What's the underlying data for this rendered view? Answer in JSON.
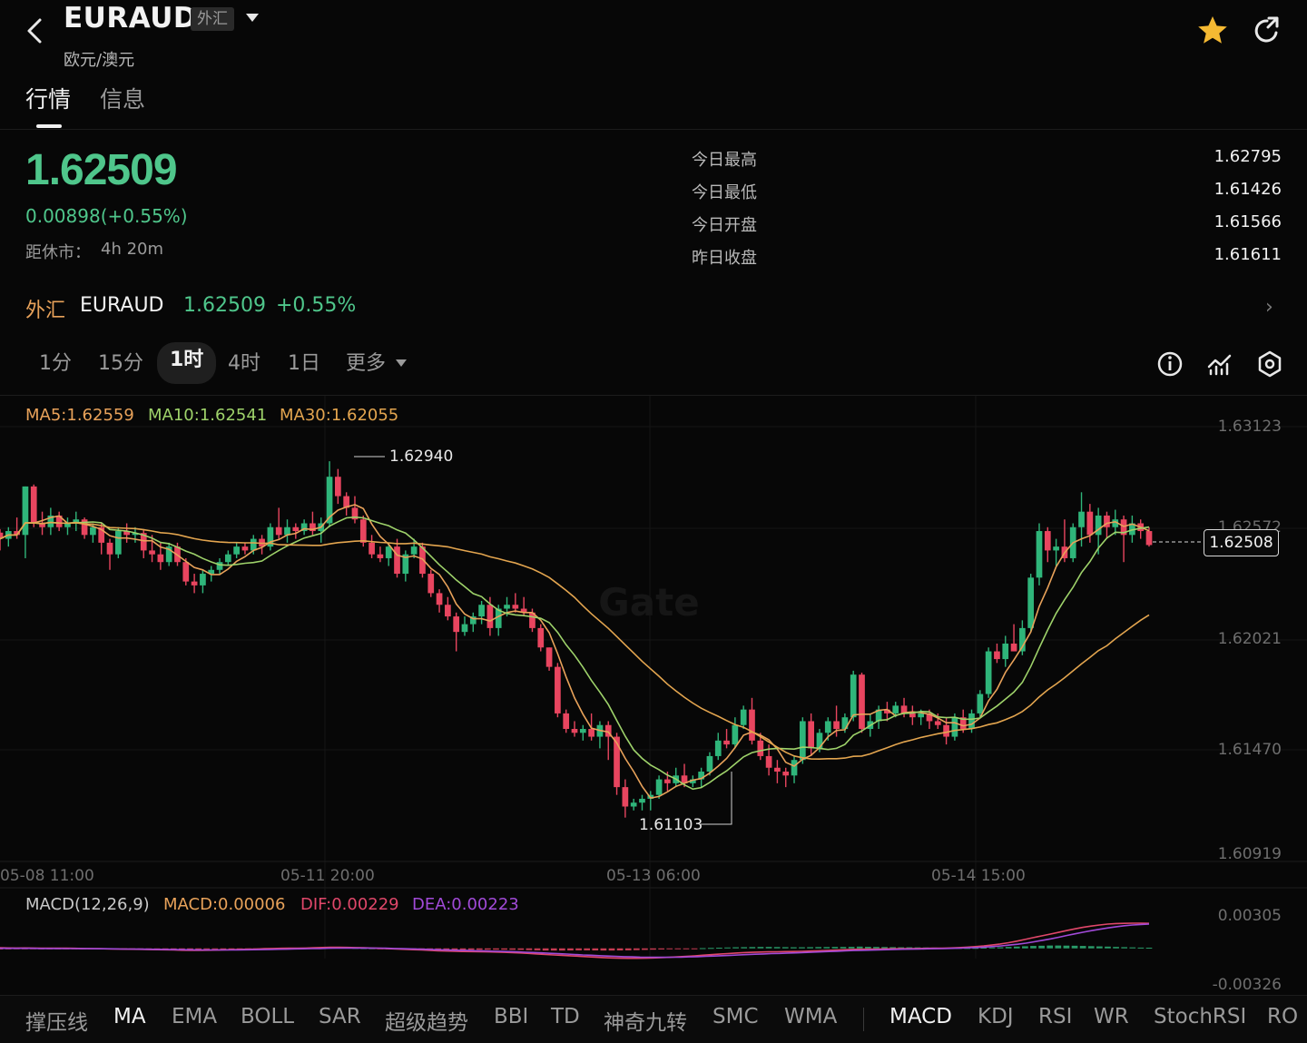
{
  "header": {
    "symbol": "EURAUD",
    "badge": "外汇",
    "subtitle": "欧元/澳元",
    "icons": [
      "back-arrow-icon",
      "star-icon",
      "share-icon"
    ],
    "favorite_color": "#f5b932"
  },
  "tabs": [
    "行情",
    "信息"
  ],
  "quote": {
    "price": "1.62509",
    "change": "0.00898(+0.55%)",
    "close_label": "距休市：",
    "close_value": "4h 20m",
    "stats": [
      {
        "label": "今日最高",
        "value": "1.62795"
      },
      {
        "label": "今日最低",
        "value": "1.61426"
      },
      {
        "label": "今日开盘",
        "value": "1.61566"
      },
      {
        "label": "昨日收盘",
        "value": "1.61611"
      }
    ]
  },
  "ticker": {
    "category": "外汇",
    "symbol": "EURAUD",
    "price": "1.62509",
    "pct": "+0.55%",
    "arrow": "›"
  },
  "intervals": [
    "1分",
    "15分",
    "1时",
    "4时",
    "1日",
    "更多"
  ],
  "selected_interval": "1时",
  "tools": [
    "info-icon",
    "indicator-icon",
    "settings-icon"
  ],
  "legend": {
    "ma5": "MA5:1.62559",
    "ma10": "MA10:1.62541",
    "ma30": "MA30:1.62055",
    "macd_title": "MACD(12,26,9)",
    "macd": "MACD:0.00006",
    "dif": "DIF:0.00229",
    "dea": "DEA:0.00223"
  },
  "colors": {
    "up": "#2fb57a",
    "down": "#e8455f",
    "ma5": "#e8a25a",
    "ma10": "#9ed26a",
    "ma30": "#e3a54f",
    "dif": "#e0476a",
    "dea": "#a14ad8"
  },
  "chart_data": {
    "type": "candlestick",
    "y_ticks": [
      "1.63123",
      "1.62572",
      "1.62021",
      "1.61470",
      "1.60919"
    ],
    "x_ticks": [
      "05-08 11:00",
      "05-11 20:00",
      "05-13 06:00",
      "05-14 15:00"
    ],
    "annotations": {
      "high": "1.62940",
      "low": "1.61103",
      "last_price": "1.62508"
    },
    "ylim": [
      1.60919,
      1.63123
    ],
    "macd_ticks": [
      "0.00305",
      "-0.00326"
    ],
    "watermark": "Gate",
    "candles": [
      [
        1.62572,
        1.6259,
        1.6248,
        1.6254
      ],
      [
        1.6254,
        1.626,
        1.625,
        1.6258
      ],
      [
        1.6258,
        1.6265,
        1.6254,
        1.6256
      ],
      [
        1.6256,
        1.6281,
        1.6244,
        1.6281
      ],
      [
        1.6281,
        1.6282,
        1.626,
        1.6262
      ],
      [
        1.6262,
        1.6268,
        1.6256,
        1.626
      ],
      [
        1.626,
        1.627,
        1.6256,
        1.6266
      ],
      [
        1.6266,
        1.6268,
        1.6258,
        1.626
      ],
      [
        1.626,
        1.6265,
        1.6256,
        1.6262
      ],
      [
        1.6262,
        1.6268,
        1.6258,
        1.6264
      ],
      [
        1.6264,
        1.6265,
        1.6254,
        1.6256
      ],
      [
        1.6256,
        1.6262,
        1.6252,
        1.626
      ],
      [
        1.626,
        1.6262,
        1.6246,
        1.6252
      ],
      [
        1.6252,
        1.6254,
        1.6238,
        1.6246
      ],
      [
        1.6246,
        1.626,
        1.6244,
        1.6258
      ],
      [
        1.6258,
        1.6262,
        1.6252,
        1.6256
      ],
      [
        1.6256,
        1.626,
        1.6252,
        1.6257
      ],
      [
        1.6257,
        1.6259,
        1.6244,
        1.6248
      ],
      [
        1.6248,
        1.6256,
        1.6242,
        1.6246
      ],
      [
        1.6246,
        1.6252,
        1.6238,
        1.6242
      ],
      [
        1.6242,
        1.6252,
        1.624,
        1.625
      ],
      [
        1.625,
        1.6252,
        1.624,
        1.6242
      ],
      [
        1.6242,
        1.6244,
        1.623,
        1.6232
      ],
      [
        1.6232,
        1.6236,
        1.6226,
        1.623
      ],
      [
        1.623,
        1.6238,
        1.6226,
        1.6236
      ],
      [
        1.6236,
        1.624,
        1.6232,
        1.6238
      ],
      [
        1.6238,
        1.6244,
        1.6236,
        1.6242
      ],
      [
        1.6242,
        1.6248,
        1.624,
        1.6246
      ],
      [
        1.6246,
        1.6252,
        1.6244,
        1.625
      ],
      [
        1.625,
        1.6252,
        1.6246,
        1.6248
      ],
      [
        1.6248,
        1.6256,
        1.6246,
        1.6254
      ],
      [
        1.6254,
        1.6256,
        1.6246,
        1.625
      ],
      [
        1.625,
        1.6262,
        1.6248,
        1.626
      ],
      [
        1.626,
        1.627,
        1.6254,
        1.6256
      ],
      [
        1.6256,
        1.6264,
        1.6252,
        1.626
      ],
      [
        1.626,
        1.6262,
        1.6254,
        1.6258
      ],
      [
        1.6258,
        1.6264,
        1.6256,
        1.6262
      ],
      [
        1.6262,
        1.6268,
        1.6256,
        1.6258
      ],
      [
        1.6258,
        1.6265,
        1.6252,
        1.6262
      ],
      [
        1.6262,
        1.6294,
        1.626,
        1.6286
      ],
      [
        1.6286,
        1.629,
        1.6272,
        1.6276
      ],
      [
        1.6276,
        1.6278,
        1.6266,
        1.627
      ],
      [
        1.627,
        1.6276,
        1.6262,
        1.6264
      ],
      [
        1.6264,
        1.6266,
        1.625,
        1.6252
      ],
      [
        1.6252,
        1.6256,
        1.6244,
        1.6246
      ],
      [
        1.6246,
        1.625,
        1.6242,
        1.6244
      ],
      [
        1.6244,
        1.6252,
        1.624,
        1.625
      ],
      [
        1.625,
        1.6254,
        1.6234,
        1.6236
      ],
      [
        1.6236,
        1.6248,
        1.6232,
        1.6246
      ],
      [
        1.6246,
        1.6254,
        1.6244,
        1.625
      ],
      [
        1.625,
        1.6252,
        1.6234,
        1.6236
      ],
      [
        1.6236,
        1.6238,
        1.6224,
        1.6226
      ],
      [
        1.6226,
        1.6228,
        1.6216,
        1.622
      ],
      [
        1.622,
        1.6224,
        1.6212,
        1.6214
      ],
      [
        1.6214,
        1.6216,
        1.6196,
        1.6206
      ],
      [
        1.6206,
        1.6214,
        1.6204,
        1.621
      ],
      [
        1.621,
        1.6216,
        1.6206,
        1.6214
      ],
      [
        1.6214,
        1.6222,
        1.621,
        1.622
      ],
      [
        1.622,
        1.6224,
        1.6204,
        1.6208
      ],
      [
        1.6208,
        1.622,
        1.6204,
        1.6218
      ],
      [
        1.6218,
        1.6224,
        1.6214,
        1.622
      ],
      [
        1.622,
        1.6226,
        1.6216,
        1.6218
      ],
      [
        1.6218,
        1.6224,
        1.6214,
        1.6216
      ],
      [
        1.6216,
        1.6218,
        1.6206,
        1.6208
      ],
      [
        1.6208,
        1.621,
        1.6196,
        1.6198
      ],
      [
        1.6198,
        1.6198,
        1.6186,
        1.6188
      ],
      [
        1.6188,
        1.619,
        1.6162,
        1.6164
      ],
      [
        1.6164,
        1.6166,
        1.6154,
        1.6156
      ],
      [
        1.6156,
        1.616,
        1.6152,
        1.6154
      ],
      [
        1.6154,
        1.6158,
        1.615,
        1.6156
      ],
      [
        1.6156,
        1.6164,
        1.615,
        1.6152
      ],
      [
        1.6152,
        1.616,
        1.6146,
        1.6158
      ],
      [
        1.6158,
        1.616,
        1.614,
        1.6152
      ],
      [
        1.6152,
        1.6154,
        1.6122,
        1.6126
      ],
      [
        1.6126,
        1.613,
        1.61103,
        1.6116
      ],
      [
        1.6116,
        1.612,
        1.6114,
        1.6118
      ],
      [
        1.6118,
        1.6122,
        1.6114,
        1.612
      ],
      [
        1.612,
        1.6124,
        1.6114,
        1.6122
      ],
      [
        1.6122,
        1.6132,
        1.612,
        1.613
      ],
      [
        1.613,
        1.6134,
        1.6124,
        1.6128
      ],
      [
        1.6128,
        1.6136,
        1.6126,
        1.6132
      ],
      [
        1.6132,
        1.6138,
        1.6126,
        1.6128
      ],
      [
        1.6128,
        1.6132,
        1.6126,
        1.613
      ],
      [
        1.613,
        1.6136,
        1.6126,
        1.6134
      ],
      [
        1.6134,
        1.6144,
        1.6132,
        1.6142
      ],
      [
        1.6142,
        1.6154,
        1.614,
        1.615
      ],
      [
        1.615,
        1.6156,
        1.6146,
        1.6148
      ],
      [
        1.6148,
        1.6162,
        1.6146,
        1.6158
      ],
      [
        1.6158,
        1.6168,
        1.6156,
        1.6166
      ],
      [
        1.6166,
        1.6172,
        1.6148,
        1.615
      ],
      [
        1.615,
        1.6154,
        1.614,
        1.6142
      ],
      [
        1.6142,
        1.6148,
        1.6132,
        1.6136
      ],
      [
        1.6136,
        1.614,
        1.6128,
        1.6134
      ],
      [
        1.6134,
        1.6136,
        1.6126,
        1.6132
      ],
      [
        1.6132,
        1.6142,
        1.6128,
        1.614
      ],
      [
        1.614,
        1.6162,
        1.6138,
        1.616
      ],
      [
        1.616,
        1.6164,
        1.6142,
        1.6146
      ],
      [
        1.6146,
        1.6156,
        1.6144,
        1.6154
      ],
      [
        1.6154,
        1.6162,
        1.615,
        1.616
      ],
      [
        1.616,
        1.6168,
        1.6152,
        1.6156
      ],
      [
        1.6156,
        1.6164,
        1.6154,
        1.6162
      ],
      [
        1.6162,
        1.6186,
        1.616,
        1.6184
      ],
      [
        1.6184,
        1.6185,
        1.6154,
        1.6156
      ],
      [
        1.6156,
        1.6164,
        1.6152,
        1.616
      ],
      [
        1.616,
        1.6168,
        1.6156,
        1.6166
      ],
      [
        1.6166,
        1.617,
        1.616,
        1.6164
      ],
      [
        1.6164,
        1.617,
        1.6162,
        1.6168
      ],
      [
        1.6168,
        1.6172,
        1.6162,
        1.6164
      ],
      [
        1.6164,
        1.6168,
        1.6158,
        1.6162
      ],
      [
        1.6162,
        1.6166,
        1.6158,
        1.6164
      ],
      [
        1.6164,
        1.6166,
        1.6156,
        1.616
      ],
      [
        1.616,
        1.6164,
        1.6156,
        1.6158
      ],
      [
        1.6158,
        1.6162,
        1.6148,
        1.6152
      ],
      [
        1.6152,
        1.6164,
        1.615,
        1.6162
      ],
      [
        1.6162,
        1.6166,
        1.6154,
        1.6156
      ],
      [
        1.6156,
        1.6166,
        1.6154,
        1.6164
      ],
      [
        1.6164,
        1.6176,
        1.6162,
        1.6174
      ],
      [
        1.6174,
        1.6198,
        1.6172,
        1.6196
      ],
      [
        1.6196,
        1.62,
        1.619,
        1.6192
      ],
      [
        1.6192,
        1.6204,
        1.6188,
        1.62
      ],
      [
        1.62,
        1.621,
        1.6196,
        1.6196
      ],
      [
        1.6196,
        1.6212,
        1.6194,
        1.6208
      ],
      [
        1.6208,
        1.6236,
        1.6206,
        1.6234
      ],
      [
        1.6234,
        1.6262,
        1.623,
        1.6258
      ],
      [
        1.6258,
        1.626,
        1.6242,
        1.6248
      ],
      [
        1.6248,
        1.6254,
        1.624,
        1.625
      ],
      [
        1.625,
        1.6264,
        1.6242,
        1.6244
      ],
      [
        1.6244,
        1.6262,
        1.6242,
        1.626
      ],
      [
        1.626,
        1.6278,
        1.625,
        1.6268
      ],
      [
        1.6268,
        1.6272,
        1.6252,
        1.6256
      ],
      [
        1.6256,
        1.627,
        1.6246,
        1.6266
      ],
      [
        1.6266,
        1.6268,
        1.6254,
        1.626
      ],
      [
        1.626,
        1.6269,
        1.6256,
        1.6264
      ],
      [
        1.6264,
        1.6266,
        1.6242,
        1.6256
      ],
      [
        1.6256,
        1.6266,
        1.6252,
        1.6262
      ],
      [
        1.6262,
        1.6264,
        1.6254,
        1.6258
      ],
      [
        1.6258,
        1.626,
        1.625,
        1.62508
      ]
    ],
    "macd_hist": [
      -0.0001,
      -9e-05,
      -8e-05,
      -6e-05,
      -6e-05,
      -5e-05,
      -4e-05,
      -4e-05,
      -3e-05,
      -3e-05,
      -4e-05,
      -4e-05,
      -5e-05,
      -6e-05,
      -6e-05,
      -7e-05,
      -7e-05,
      -8e-05,
      -8e-05,
      -9e-05,
      -9e-05,
      -0.0001,
      -0.00011,
      -0.00011,
      -0.0001,
      -9e-05,
      -8e-05,
      -6e-05,
      -5e-05,
      -4e-05,
      -3e-05,
      -2e-05,
      1e-05,
      2e-05,
      3e-05,
      3e-05,
      4e-05,
      5e-05,
      6e-05,
      8e-05,
      9e-05,
      8e-05,
      6e-05,
      4e-05,
      2e-05,
      1e-05,
      -1e-05,
      -3e-05,
      -5e-05,
      -6e-05,
      -8e-05,
      -0.0001,
      -0.00012,
      -0.00013,
      -0.00014,
      -0.00014,
      -0.00014,
      -0.00013,
      -0.00013,
      -0.00012,
      -0.00012,
      -0.00012,
      -0.00013,
      -0.00014,
      -0.00016,
      -0.00018,
      -0.0002,
      -0.0002,
      -0.0002,
      -0.00019,
      -0.00018,
      -0.00018,
      -0.00019,
      -0.0002,
      -0.0002,
      -0.00019,
      -0.00018,
      -0.00016,
      -0.00014,
      -0.00012,
      -0.0001,
      -8e-05,
      -6e-05,
      -4e-05,
      -2e-05,
      2e-05,
      4e-05,
      6e-05,
      8e-05,
      0.0001,
      0.00011,
      0.00012,
      0.00013,
      0.00013,
      0.00012,
      0.00011,
      0.0001,
      0.0001,
      0.00011,
      0.00012,
      0.00012,
      0.00013,
      0.00013,
      0.00014,
      0.00016,
      0.00014,
      0.00013,
      0.00012,
      0.00011,
      0.0001,
      0.0001,
      9e-05,
      8e-05,
      7e-05,
      6e-05,
      5e-05,
      4e-05,
      3e-05,
      4e-05,
      6e-05,
      8e-05,
      0.0001,
      0.00013,
      0.00016,
      0.00019,
      0.00022,
      0.00024,
      0.00026,
      0.00026,
      0.00025,
      0.00024,
      0.00022,
      0.0002,
      0.00018,
      0.00016,
      0.00013,
      0.00011,
      9e-05,
      7e-05,
      6e-05
    ],
    "dif": [
      5e-05,
      4e-05,
      3e-05,
      4e-05,
      3e-05,
      2e-05,
      2e-05,
      1e-05,
      1e-05,
      0.0,
      -1e-05,
      -2e-05,
      -3e-05,
      -5e-05,
      -6e-05,
      -7e-05,
      -8e-05,
      -9e-05,
      -0.00011,
      -0.00012,
      -0.00013,
      -0.00015,
      -0.00017,
      -0.00018,
      -0.00018,
      -0.00017,
      -0.00016,
      -0.00014,
      -0.00012,
      -0.0001,
      -8e-05,
      -6e-05,
      -3e-05,
      -1e-05,
      0.0,
      1e-05,
      2e-05,
      3e-05,
      5e-05,
      8e-05,
      0.0001,
      0.0001,
      9e-05,
      7e-05,
      5e-05,
      3e-05,
      0.0,
      -3e-05,
      -6e-05,
      -9e-05,
      -0.00012,
      -0.00015,
      -0.00019,
      -0.00022,
      -0.00025,
      -0.00027,
      -0.00029,
      -0.0003,
      -0.00031,
      -0.00032,
      -0.00034,
      -0.00036,
      -0.00039,
      -0.00042,
      -0.00046,
      -0.00051,
      -0.00056,
      -0.0006,
      -0.00064,
      -0.00068,
      -0.00072,
      -0.00076,
      -0.0008,
      -0.00084,
      -0.00088,
      -0.0009,
      -0.00091,
      -0.00091,
      -0.0009,
      -0.00088,
      -0.00085,
      -0.00082,
      -0.00078,
      -0.00074,
      -0.00069,
      -0.00063,
      -0.00058,
      -0.00053,
      -0.00048,
      -0.00043,
      -0.00039,
      -0.00036,
      -0.00034,
      -0.00032,
      -0.00031,
      -0.0003,
      -0.00029,
      -0.00027,
      -0.00025,
      -0.00022,
      -0.00019,
      -0.00016,
      -0.00013,
      -0.0001,
      -8e-05,
      -7e-05,
      -6e-05,
      -5e-05,
      -4e-05,
      -3e-05,
      -2e-05,
      -1e-05,
      0.0,
      1e-05,
      2e-05,
      4e-05,
      7e-05,
      0.00011,
      0.00016,
      0.00022,
      0.0003,
      0.0004,
      0.00052,
      0.00066,
      0.00082,
      0.00098,
      0.00114,
      0.0013,
      0.00146,
      0.00162,
      0.00178,
      0.00192,
      0.00204,
      0.00214,
      0.00222,
      0.00227,
      0.00229,
      0.0023,
      0.0023,
      0.00229
    ],
    "dea": [
      0.0,
      0.0,
      0.0,
      0.0,
      0.0,
      -1e-05,
      -1e-05,
      -1e-05,
      -2e-05,
      -2e-05,
      -3e-05,
      -3e-05,
      -4e-05,
      -4e-05,
      -5e-05,
      -6e-05,
      -6e-05,
      -7e-05,
      -8e-05,
      -9e-05,
      -0.0001,
      -0.00011,
      -0.00012,
      -0.00013,
      -0.00014,
      -0.00015,
      -0.00015,
      -0.00015,
      -0.00015,
      -0.00014,
      -0.00013,
      -0.00012,
      -0.00011,
      -0.0001,
      -8e-05,
      -7e-05,
      -5e-05,
      -4e-05,
      -2e-05,
      -1e-05,
      1e-05,
      2e-05,
      3e-05,
      3e-05,
      3e-05,
      3e-05,
      2e-05,
      1e-05,
      -1e-05,
      -3e-05,
      -5e-05,
      -7e-05,
      -9e-05,
      -0.00012,
      -0.00014,
      -0.00016,
      -0.00018,
      -0.0002,
      -0.00022,
      -0.00024,
      -0.00026,
      -0.00028,
      -0.0003,
      -0.00032,
      -0.00035,
      -0.00038,
      -0.00041,
      -0.00045,
      -0.00048,
      -0.00052,
      -0.00056,
      -0.0006,
      -0.00063,
      -0.00067,
      -0.0007,
      -0.00073,
      -0.00076,
      -0.00078,
      -0.0008,
      -0.00081,
      -0.00082,
      -0.00082,
      -0.00081,
      -0.0008,
      -0.00078,
      -0.00076,
      -0.00073,
      -0.0007,
      -0.00067,
      -0.00064,
      -0.0006,
      -0.00057,
      -0.00054,
      -0.00051,
      -0.00048,
      -0.00046,
      -0.00043,
      -0.00041,
      -0.00038,
      -0.00035,
      -0.00032,
      -0.00029,
      -0.00026,
      -0.00023,
      -0.0002,
      -0.00018,
      -0.00016,
      -0.00014,
      -0.00012,
      -0.0001,
      -8e-05,
      -7e-05,
      -6e-05,
      -4e-05,
      -3e-05,
      -2e-05,
      0.0,
      2e-05,
      5e-05,
      8e-05,
      0.00012,
      0.00017,
      0.00023,
      0.0003,
      0.00038,
      0.00048,
      0.0006,
      0.00073,
      0.00087,
      0.00102,
      0.00118,
      0.00133,
      0.00148,
      0.00162,
      0.00175,
      0.00187,
      0.00198,
      0.00207,
      0.00214,
      0.00219,
      0.00223
    ]
  },
  "indicators": [
    "撑压线",
    "MA",
    "EMA",
    "BOLL",
    "SAR",
    "超级趋势",
    "BBI",
    "TD",
    "神奇九转",
    "SMC",
    "WMA",
    "MACD",
    "KDJ",
    "RSI",
    "WR",
    "StochRSI",
    "RO"
  ],
  "active_indicators": [
    "MA",
    "MACD"
  ]
}
